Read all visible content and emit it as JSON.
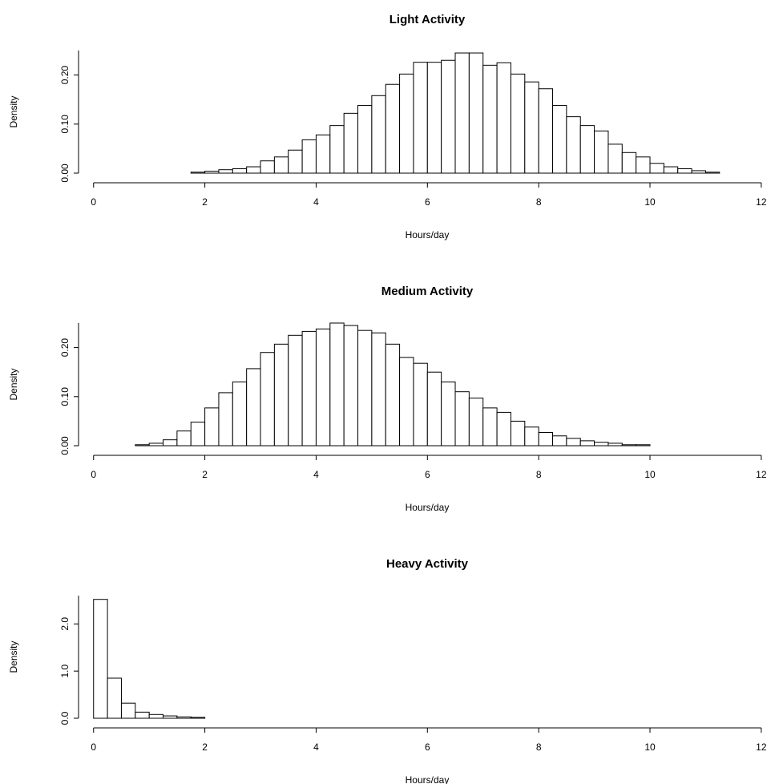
{
  "chart_data": [
    {
      "type": "histogram",
      "title": "Light Activity",
      "x_label": "Hours/day",
      "y_label": "Density",
      "bins": [
        0,
        0.25,
        0.5,
        0.75,
        1,
        1.25,
        1.5,
        1.75,
        2,
        2.25,
        2.5,
        2.75,
        3,
        3.25,
        3.5,
        3.75,
        4,
        4.25,
        4.5,
        4.75,
        5,
        5.25,
        5.5,
        5.75,
        6,
        6.25,
        6.5,
        6.75,
        7,
        7.25,
        7.5,
        7.75,
        8,
        8.25,
        8.5,
        8.75,
        9,
        9.25,
        9.5,
        9.75,
        10,
        10.25,
        10.5,
        10.75,
        11,
        11.25,
        11.5,
        11.75,
        12,
        12.25
      ],
      "values": [
        0,
        0,
        0,
        0,
        0,
        0,
        0,
        0.002,
        0.004,
        0.007,
        0.009,
        0.013,
        0.025,
        0.033,
        0.047,
        0.068,
        0.078,
        0.097,
        0.122,
        0.138,
        0.158,
        0.181,
        0.202,
        0.226,
        0.226,
        0.23,
        0.245,
        0.245,
        0.22,
        0.225,
        0.202,
        0.186,
        0.172,
        0.138,
        0.115,
        0.097,
        0.086,
        0.059,
        0.042,
        0.033,
        0.02,
        0.013,
        0.009,
        0.005,
        0.002,
        0,
        0,
        0,
        0
      ],
      "color": "#ffffff",
      "edge_color": "#000000",
      "xlim": [
        -0.27,
        12.29
      ],
      "ylim": [
        0,
        0.25
      ],
      "xticks": [
        0,
        2,
        4,
        6,
        8,
        10,
        12
      ],
      "yticks": [
        {
          "value": 0,
          "label": "0.00"
        },
        {
          "value": 0.1,
          "label": "0.10"
        },
        {
          "value": 0.2,
          "label": "0.20"
        }
      ]
    },
    {
      "type": "histogram",
      "title": "Medium Activity",
      "x_label": "Hours/day",
      "y_label": "Density",
      "bins": [
        0,
        0.25,
        0.5,
        0.75,
        1,
        1.25,
        1.5,
        1.75,
        2,
        2.25,
        2.5,
        2.75,
        3,
        3.25,
        3.5,
        3.75,
        4,
        4.25,
        4.5,
        4.75,
        5,
        5.25,
        5.5,
        5.75,
        6,
        6.25,
        6.5,
        6.75,
        7,
        7.25,
        7.5,
        7.75,
        8,
        8.25,
        8.5,
        8.75,
        9,
        9.25,
        9.5,
        9.75,
        10,
        10.25,
        10.5,
        10.75,
        11,
        11.25,
        11.5,
        11.75,
        12,
        12.25
      ],
      "values": [
        0,
        0,
        0,
        0.002,
        0.005,
        0.012,
        0.03,
        0.048,
        0.077,
        0.108,
        0.13,
        0.157,
        0.19,
        0.207,
        0.225,
        0.233,
        0.238,
        0.25,
        0.245,
        0.235,
        0.23,
        0.207,
        0.18,
        0.168,
        0.15,
        0.13,
        0.11,
        0.097,
        0.077,
        0.068,
        0.05,
        0.038,
        0.027,
        0.02,
        0.015,
        0.01,
        0.007,
        0.005,
        0.002,
        0.002,
        0,
        0,
        0,
        0,
        0,
        0,
        0,
        0,
        0
      ],
      "color": "#ffffff",
      "edge_color": "#000000",
      "xlim": [
        -0.27,
        12.29
      ],
      "ylim": [
        0,
        0.25
      ],
      "xticks": [
        0,
        2,
        4,
        6,
        8,
        10,
        12
      ],
      "yticks": [
        {
          "value": 0,
          "label": "0.00"
        },
        {
          "value": 0.1,
          "label": "0.10"
        },
        {
          "value": 0.2,
          "label": "0.20"
        }
      ]
    },
    {
      "type": "histogram",
      "title": "Heavy Activity",
      "x_label": "Hours/day",
      "y_label": "Density",
      "bins": [
        0,
        0.25,
        0.5,
        0.75,
        1,
        1.25,
        1.5,
        1.75,
        2,
        2.25,
        2.5,
        2.75,
        3,
        3.25,
        3.5,
        3.75,
        4,
        4.25,
        4.5,
        4.75,
        5,
        5.25,
        5.5,
        5.75,
        6,
        6.25,
        6.5,
        6.75,
        7,
        7.25,
        7.5,
        7.75,
        8,
        8.25,
        8.5,
        8.75,
        9,
        9.25,
        9.5,
        9.75,
        10,
        10.25,
        10.5,
        10.75,
        11,
        11.25,
        11.5,
        11.75,
        12,
        12.25
      ],
      "values": [
        2.52,
        0.85,
        0.32,
        0.13,
        0.08,
        0.05,
        0.03,
        0.02,
        0,
        0,
        0,
        0,
        0,
        0,
        0,
        0,
        0,
        0,
        0,
        0,
        0,
        0,
        0,
        0,
        0,
        0,
        0,
        0,
        0,
        0,
        0,
        0,
        0,
        0,
        0,
        0,
        0,
        0,
        0,
        0,
        0,
        0,
        0,
        0,
        0,
        0,
        0,
        0,
        0
      ],
      "color": "#ffffff",
      "edge_color": "#000000",
      "xlim": [
        -0.27,
        12.29
      ],
      "ylim": [
        0,
        2.6
      ],
      "xticks": [
        0,
        2,
        4,
        6,
        8,
        10,
        12
      ],
      "yticks": [
        {
          "value": 0,
          "label": "0.0"
        },
        {
          "value": 1,
          "label": "1.0"
        },
        {
          "value": 2,
          "label": "2.0"
        }
      ]
    }
  ]
}
